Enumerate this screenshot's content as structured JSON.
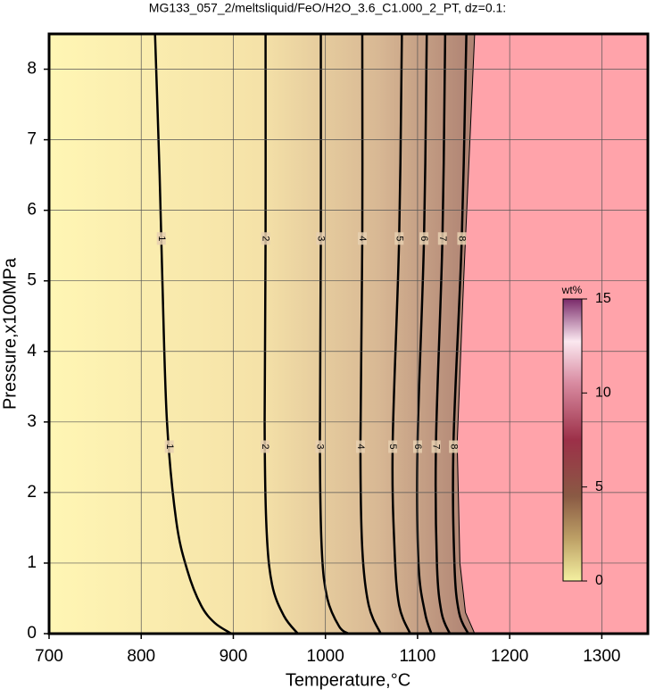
{
  "chart_data": {
    "type": "contour",
    "title": "MG133_057_2/meltsliquid/FeO/H2O_3.6_C1.000_2_PT, dz=0.1:",
    "x_label": "Temperature,°C",
    "y_label": "Pressure,x100MPa",
    "xlim": [
      700,
      1350
    ],
    "ylim": [
      0,
      8.5
    ],
    "xticks": [
      700,
      800,
      900,
      1000,
      1100,
      1200,
      1300
    ],
    "yticks": [
      0,
      1,
      2,
      3,
      4,
      5,
      6,
      7,
      8
    ],
    "grid": true,
    "region_color": "#ffa3aa",
    "region_boundary": {
      "x": [
        1162,
        1150,
        1143,
        1146,
        1152,
        1162
      ],
      "y": [
        8.5,
        5,
        2.7,
        1,
        0.3,
        0
      ]
    },
    "contours": [
      {
        "level": 1,
        "x": [
          815,
          820,
          823,
          828,
          838,
          850,
          865,
          880,
          898
        ],
        "y": [
          8.5,
          6.5,
          5,
          3,
          1.6,
          0.9,
          0.4,
          0.15,
          0
        ]
      },
      {
        "level": 2,
        "x": [
          935,
          935,
          934,
          936,
          942,
          955,
          970
        ],
        "y": [
          8.5,
          5.6,
          3,
          1.5,
          0.7,
          0.25,
          0
        ]
      },
      {
        "level": 3,
        "x": [
          995,
          995,
          994,
          996,
          1002,
          1015,
          1025
        ],
        "y": [
          8.5,
          5.6,
          2.7,
          1.2,
          0.5,
          0.1,
          0
        ]
      },
      {
        "level": 4,
        "x": [
          1040,
          1040,
          1038,
          1040,
          1047,
          1060
        ],
        "y": [
          8.5,
          5.6,
          2.7,
          1.2,
          0.4,
          0
        ]
      },
      {
        "level": 5,
        "x": [
          1083,
          1080,
          1073,
          1075,
          1080,
          1092
        ],
        "y": [
          8.5,
          5.6,
          2.7,
          1.2,
          0.4,
          0
        ]
      },
      {
        "level": 6,
        "x": [
          1110,
          1107,
          1100,
          1101,
          1108,
          1115
        ],
        "y": [
          8.5,
          5.6,
          2.7,
          1,
          0.3,
          0
        ]
      },
      {
        "level": 7,
        "x": [
          1130,
          1127,
          1120,
          1121,
          1126,
          1135
        ],
        "y": [
          8.5,
          5.6,
          2.7,
          1,
          0.3,
          0
        ]
      },
      {
        "level": 8,
        "x": [
          1153,
          1148,
          1139,
          1140,
          1145,
          1155
        ],
        "y": [
          8.5,
          5.6,
          2.7,
          1,
          0.3,
          0
        ]
      }
    ],
    "colorbar": {
      "label": "wt%",
      "lim": [
        0,
        15
      ],
      "ticks": [
        0,
        5,
        10,
        15
      ]
    }
  }
}
